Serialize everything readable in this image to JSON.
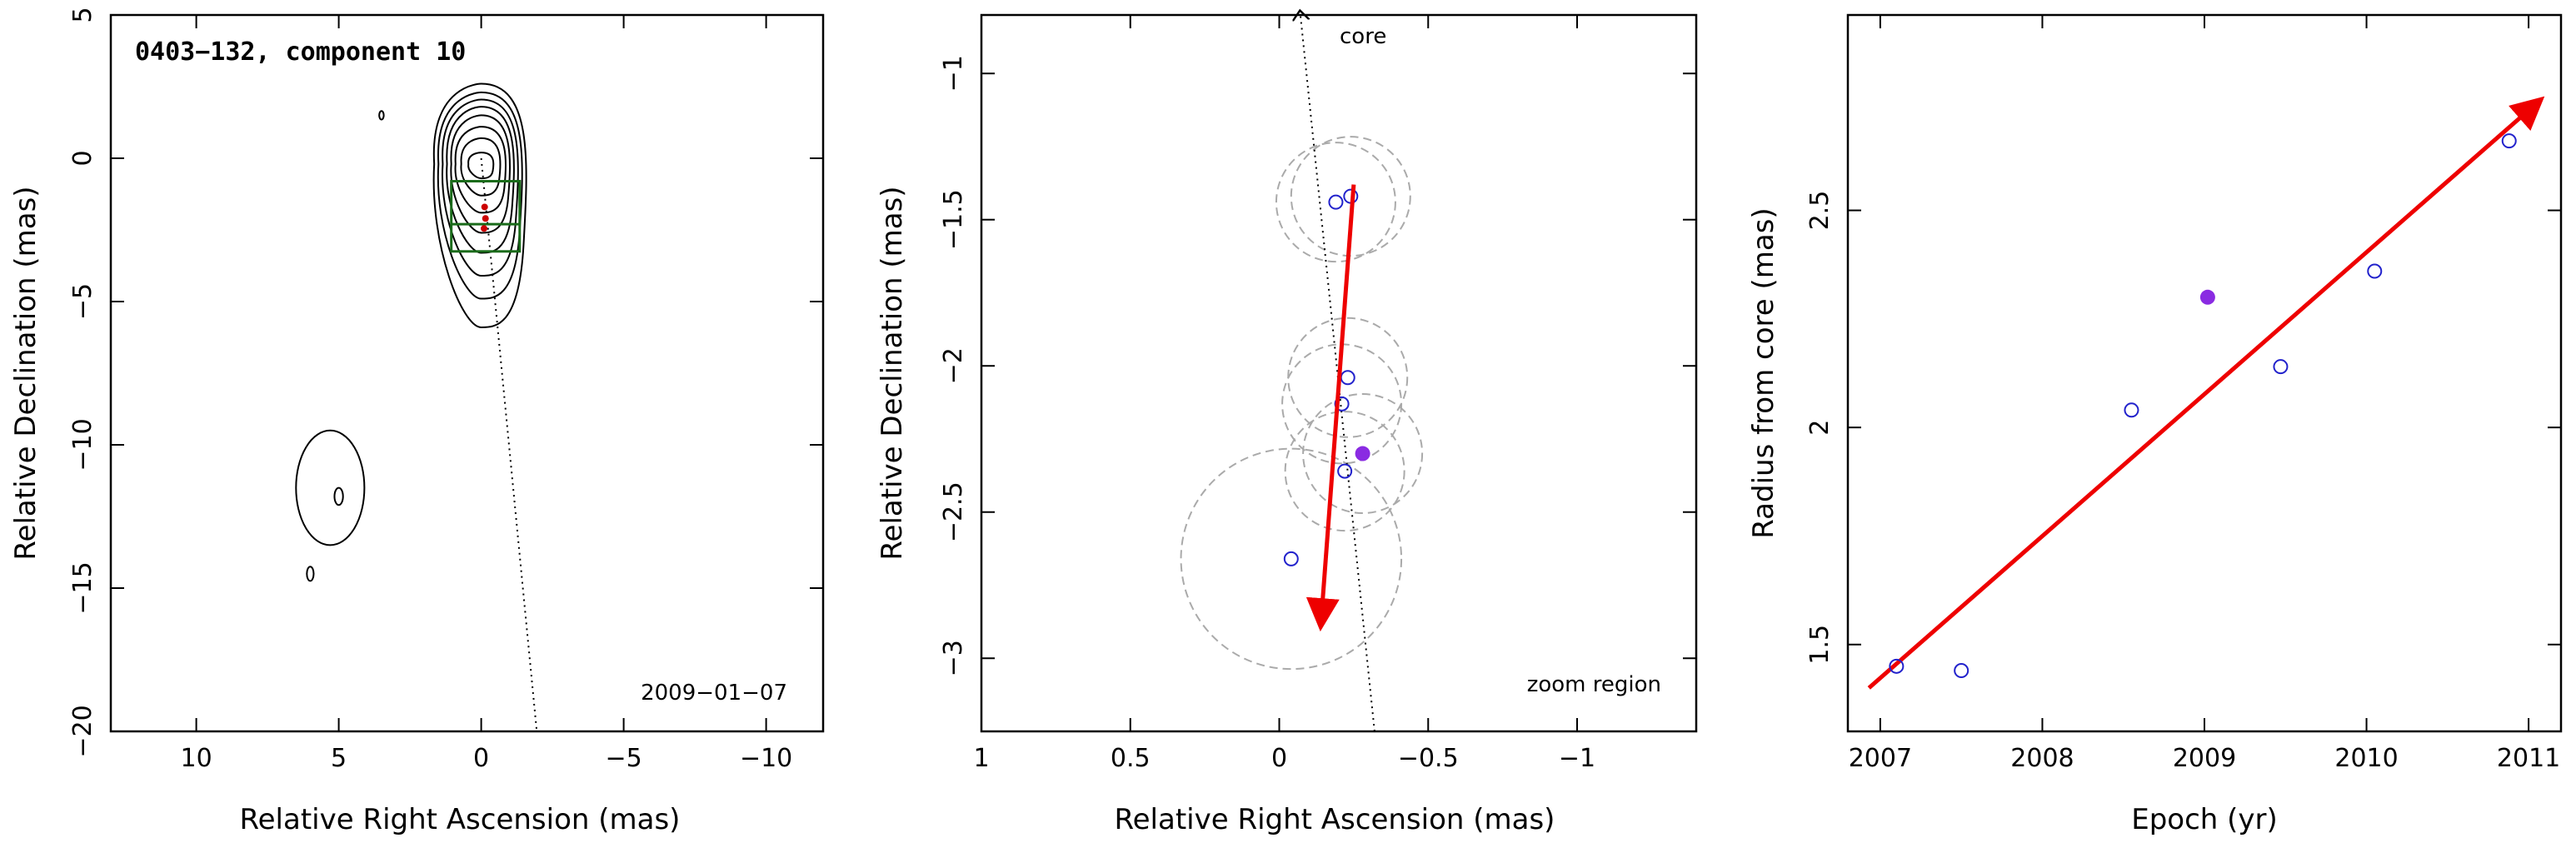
{
  "figure": {
    "panels": [
      "contour-map",
      "zoom-region",
      "radius-vs-epoch"
    ]
  },
  "chart_data": [
    {
      "type": "contour",
      "title": "0403−132, component 10",
      "date_label": "2009−01−07",
      "xlabel": "Relative Right Ascension (mas)",
      "ylabel": "Relative Declination (mas)",
      "xlim": [
        13,
        -12
      ],
      "ylim": [
        -20,
        5
      ],
      "xticks": [
        10,
        5,
        0,
        -5,
        -10
      ],
      "yticks": [
        5,
        0,
        -5,
        -10,
        -15,
        -20
      ],
      "tick_labels_x": [
        "10",
        "5",
        "0",
        "−5",
        "−10"
      ],
      "tick_labels_y": [
        "5",
        "0",
        "−5",
        "−10",
        "−15",
        "−20"
      ],
      "contour_center": [
        0,
        -0.2
      ],
      "contour_levels": [
        {
          "rx": 0.45,
          "yt": 0.2,
          "yb": -0.7
        },
        {
          "rx": 0.7,
          "yt": 0.7,
          "yb": -1.3
        },
        {
          "rx": 0.9,
          "yt": 1.1,
          "yb": -1.9
        },
        {
          "rx": 1.05,
          "yt": 1.5,
          "yb": -2.6
        },
        {
          "rx": 1.2,
          "yt": 1.8,
          "yb": -3.3
        },
        {
          "rx": 1.35,
          "yt": 2.05,
          "yb": -4.1
        },
        {
          "rx": 1.5,
          "yt": 2.3,
          "yb": -4.9
        },
        {
          "rx": 1.65,
          "yt": 2.6,
          "yb": -5.9
        }
      ],
      "zoom_box": {
        "x": [
          1.05,
          -1.35
        ],
        "y": [
          -0.8,
          -3.25
        ],
        "divider_y": -2.3,
        "color": "#1a6b1a"
      },
      "jet_axis": {
        "from": [
          0,
          0
        ],
        "to": [
          -1.95,
          -20
        ]
      },
      "components": [
        {
          "x": -0.12,
          "y": -1.7
        },
        {
          "x": -0.15,
          "y": -2.1
        },
        {
          "x": -0.1,
          "y": -2.45
        }
      ],
      "component_color": "#cc0000",
      "secondary_blobs": [
        {
          "cx": 5.3,
          "cy": -11.5,
          "rx": 1.2,
          "ry": 2.0
        },
        {
          "cx": 5.0,
          "cy": -11.8,
          "rx": 0.15,
          "ry": 0.3
        },
        {
          "cx": 6.0,
          "cy": -14.5,
          "rx": 0.12,
          "ry": 0.25
        },
        {
          "cx": 3.5,
          "cy": 1.5,
          "rx": 0.08,
          "ry": 0.15
        }
      ]
    },
    {
      "type": "scatter",
      "region_label": "zoom region",
      "core_label": "core",
      "xlabel": "Relative Right Ascension (mas)",
      "ylabel": "Relative Declination (mas)",
      "xlim": [
        1.0,
        -1.4
      ],
      "ylim": [
        -3.25,
        -0.8
      ],
      "xticks": [
        1,
        0.5,
        0,
        -0.5,
        -1
      ],
      "yticks": [
        -1,
        -1.5,
        -2,
        -2.5,
        -3
      ],
      "tick_labels_x": [
        "1",
        "0.5",
        "0",
        "−0.5",
        "−1"
      ],
      "tick_labels_y": [
        "−1",
        "−1.5",
        "−2",
        "−2.5",
        "−3"
      ],
      "points_open": [
        {
          "x": -0.19,
          "y": -1.44
        },
        {
          "x": -0.24,
          "y": -1.42
        },
        {
          "x": -0.23,
          "y": -2.04
        },
        {
          "x": -0.21,
          "y": -2.13
        },
        {
          "x": -0.22,
          "y": -2.36
        },
        {
          "x": -0.04,
          "y": -2.66
        }
      ],
      "point_filled": {
        "x": -0.28,
        "y": -2.3
      },
      "error_circles": [
        {
          "x": -0.19,
          "y": -1.44,
          "r": 0.2
        },
        {
          "x": -0.24,
          "y": -1.42,
          "r": 0.2
        },
        {
          "x": -0.23,
          "y": -2.04,
          "r": 0.2
        },
        {
          "x": -0.21,
          "y": -2.13,
          "r": 0.2
        },
        {
          "x": -0.28,
          "y": -2.3,
          "r": 0.2
        },
        {
          "x": -0.22,
          "y": -2.36,
          "r": 0.2
        },
        {
          "x": -0.04,
          "y": -2.66,
          "r": 0.37
        }
      ],
      "motion_vector": {
        "from": [
          -0.25,
          -1.38
        ],
        "to": [
          -0.14,
          -2.88
        ]
      },
      "core_direction": {
        "from": [
          -0.32,
          -3.25
        ],
        "to": [
          -0.07,
          -0.79
        ]
      },
      "open_color": "#2222cc",
      "filled_color": "#8a2be2",
      "vector_color": "#ee0000",
      "circle_color": "#aaaaaa"
    },
    {
      "type": "scatter",
      "xlabel": "Epoch (yr)",
      "ylabel": "Radius from core (mas)",
      "xlim": [
        2006.8,
        2011.2
      ],
      "ylim": [
        1.3,
        2.95
      ],
      "xticks": [
        2007,
        2008,
        2009,
        2010,
        2011
      ],
      "yticks": [
        1.5,
        2,
        2.5
      ],
      "tick_labels_x": [
        "2007",
        "2008",
        "2009",
        "2010",
        "2011"
      ],
      "tick_labels_y": [
        "1.5",
        "2",
        "2.5"
      ],
      "points_open": [
        {
          "x": 2007.1,
          "y": 1.45
        },
        {
          "x": 2007.5,
          "y": 1.44
        },
        {
          "x": 2008.55,
          "y": 2.04
        },
        {
          "x": 2009.47,
          "y": 2.14
        },
        {
          "x": 2010.05,
          "y": 2.36
        },
        {
          "x": 2010.88,
          "y": 2.66
        }
      ],
      "point_filled": {
        "x": 2009.02,
        "y": 2.3
      },
      "fit_line": {
        "from": [
          2006.93,
          1.4
        ],
        "to": [
          2011.06,
          2.75
        ]
      },
      "open_color": "#2222cc",
      "filled_color": "#8a2be2",
      "line_color": "#ee0000"
    }
  ]
}
